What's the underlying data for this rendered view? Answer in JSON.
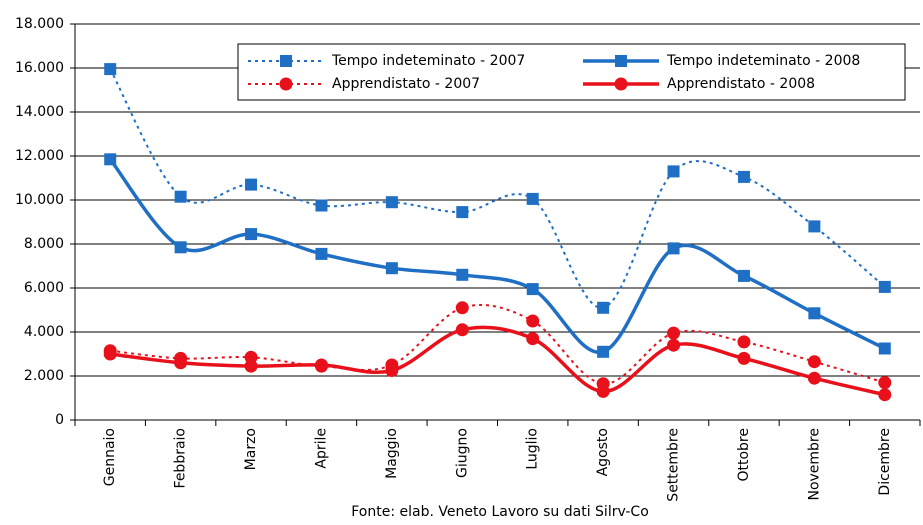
{
  "chart_data": {
    "type": "line",
    "caption": "Fonte: elab. Veneto Lavoro su dati Silrv-Co",
    "categories": [
      "Gennaio",
      "Febbraio",
      "Marzo",
      "Aprile",
      "Maggio",
      "Giugno",
      "Luglio",
      "Agosto",
      "Settembre",
      "Ottobre",
      "Novembre",
      "Dicembre"
    ],
    "series": [
      {
        "name": "Tempo indeteminato - 2007",
        "color": "#1f6fc4",
        "dash": true,
        "marker": "square",
        "values": [
          15950,
          10150,
          10700,
          9750,
          9900,
          9450,
          10050,
          5100,
          11300,
          11050,
          8800,
          6050
        ]
      },
      {
        "name": "Tempo indeteminato - 2008",
        "color": "#1f6fc4",
        "dash": false,
        "marker": "square",
        "values": [
          11850,
          7850,
          8450,
          7550,
          6900,
          6600,
          5950,
          3100,
          7800,
          6550,
          4850,
          3250
        ]
      },
      {
        "name": "Apprendistato - 2007",
        "color": "#e8101a",
        "dash": true,
        "marker": "circle",
        "values": [
          3150,
          2800,
          2850,
          2450,
          2500,
          5100,
          4500,
          1650,
          3950,
          3550,
          2650,
          1700
        ]
      },
      {
        "name": "Apprendistato - 2008",
        "color": "#e8101a",
        "dash": false,
        "marker": "circle",
        "values": [
          3000,
          2600,
          2450,
          2500,
          2250,
          4100,
          3700,
          1300,
          3400,
          2800,
          1900,
          1150
        ]
      }
    ],
    "ylim": [
      0,
      18000
    ],
    "yticks": [
      0,
      {
        "value": 2000,
        "label": "2.000"
      },
      {
        "value": 4000,
        "label": "4.000"
      },
      {
        "value": 6000,
        "label": "6.000"
      },
      {
        "value": 8000,
        "label": "8.000"
      },
      {
        "value": 10000,
        "label": "10.000"
      },
      {
        "value": 12000,
        "label": "12.000"
      },
      {
        "value": 14000,
        "label": "14.000"
      },
      {
        "value": 16000,
        "label": "16.000"
      },
      {
        "value": 18000,
        "label": "18.000"
      }
    ],
    "grid": true,
    "legend": "top-right"
  }
}
